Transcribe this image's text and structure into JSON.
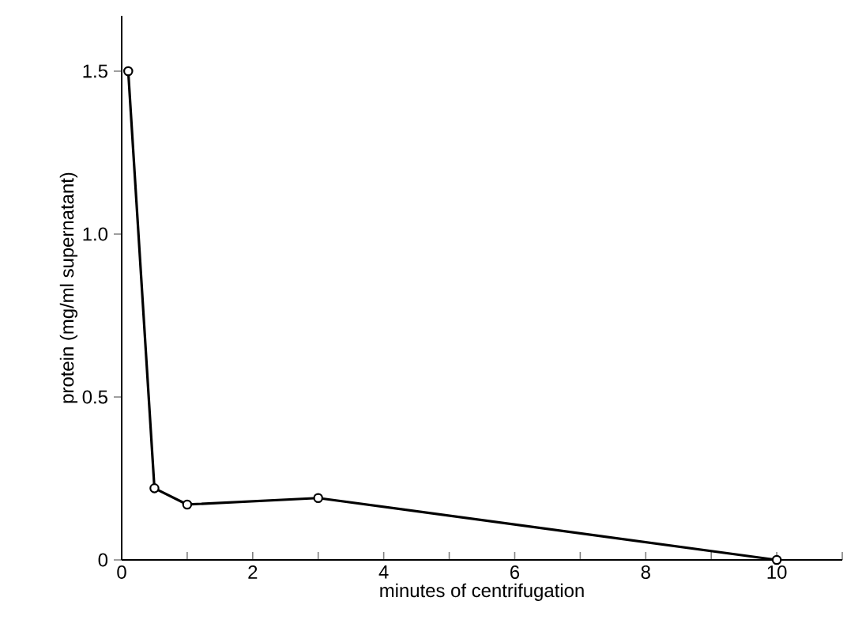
{
  "chart_data": {
    "type": "line",
    "xlabel": "minutes of centrifugation",
    "ylabel": "protein (mg/ml supernatant)",
    "x": [
      0.1,
      0.5,
      1,
      3,
      10
    ],
    "series": [
      {
        "color": "#000000",
        "values": [
          1.5,
          0.22,
          0.17,
          0.19,
          0
        ]
      }
    ],
    "xlim": [
      0,
      11
    ],
    "xticks": [
      0,
      {
        "value": 1,
        "label": null
      },
      2,
      {
        "value": 3,
        "label": null
      },
      4,
      {
        "value": 5,
        "label": null
      },
      6,
      {
        "value": 7,
        "label": null
      },
      8,
      {
        "value": 9,
        "label": null
      },
      10,
      {
        "value": 11,
        "label": null
      }
    ],
    "ylim": [
      0,
      1.67
    ],
    "yticks": [
      0,
      0.5,
      {
        "value": 1.0,
        "label": "1.0"
      },
      1.5
    ],
    "grid": false,
    "legend": false,
    "marker": "circle",
    "line_style": "solid"
  }
}
